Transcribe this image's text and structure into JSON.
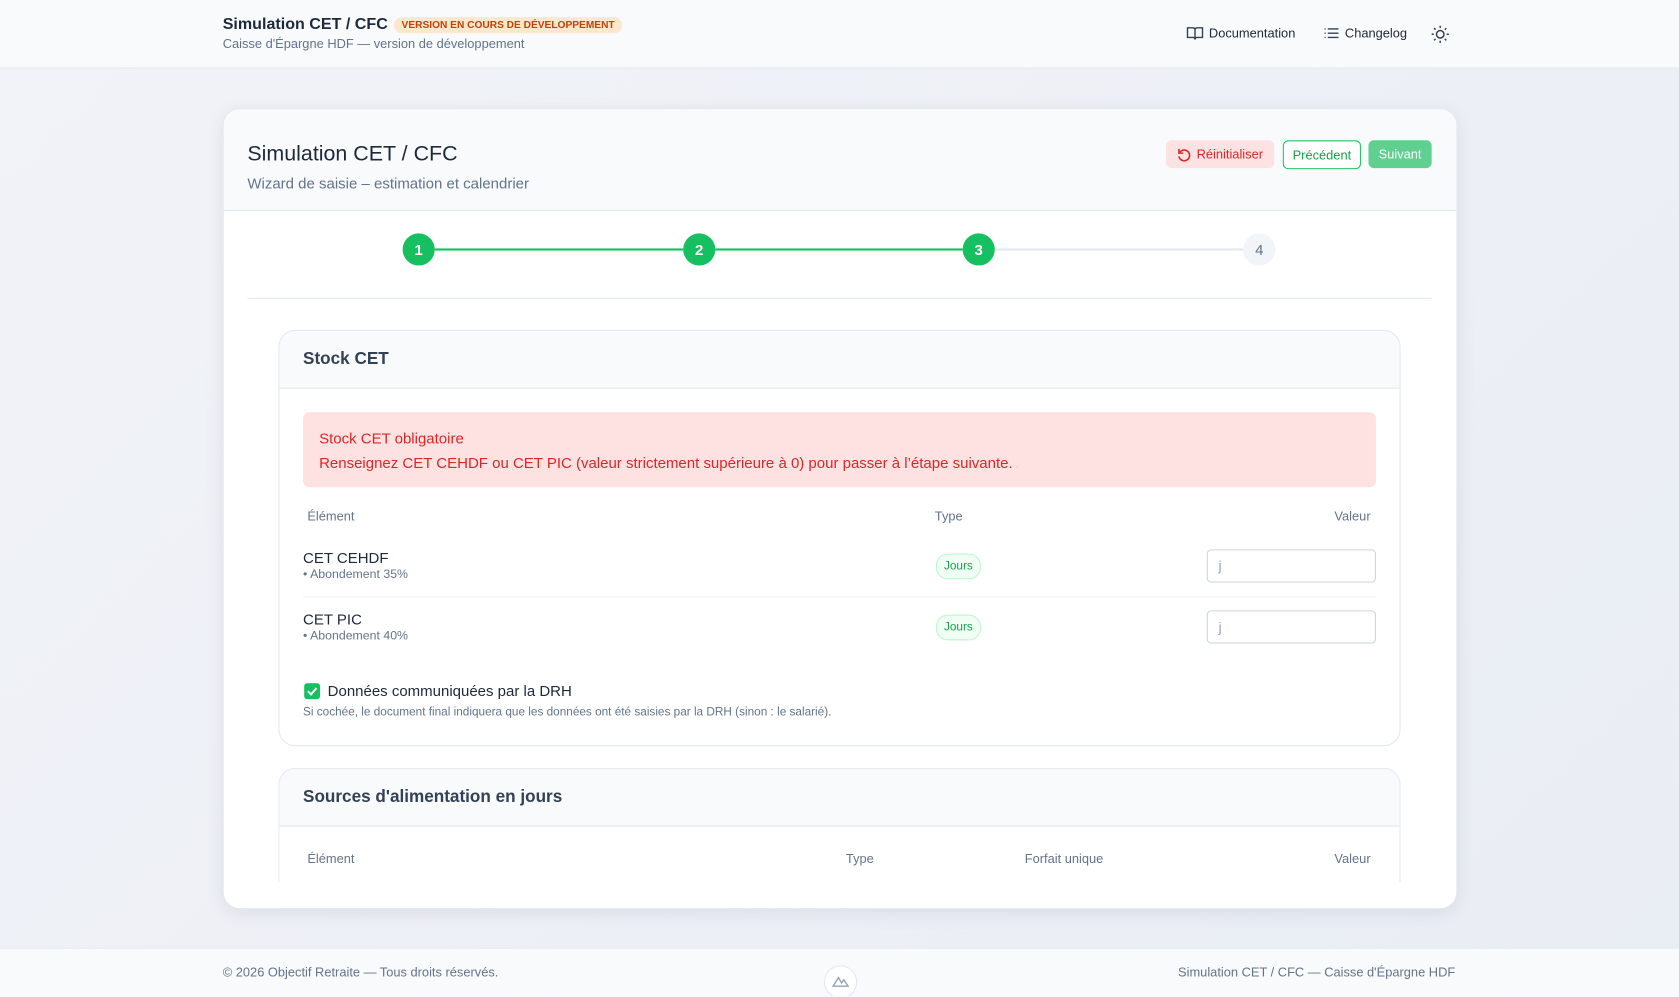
{
  "header": {
    "title": "Simulation CET / CFC",
    "badge": "VERSION EN COURS DE DÉVELOPPEMENT",
    "subtitle": "Caisse d'Épargne HDF — version de développement",
    "nav": [
      "Documentation",
      "Changelog"
    ]
  },
  "card": {
    "title": "Simulation CET / CFC",
    "subtitle": "Wizard de saisie – estimation et calendrier",
    "buttons": [
      "Réinitialiser",
      "Précédent",
      "Suivant"
    ],
    "steps": [
      "1",
      "2",
      "3",
      "4"
    ]
  },
  "stock": {
    "title": "Stock CET",
    "alert_title": "Stock CET obligatoire",
    "alert_text": "Renseignez CET CEHDF ou CET PIC (valeur strictement supérieure à 0) pour passer à l’étape suivante.",
    "columns": [
      "Élément",
      "Type",
      "Valeur"
    ],
    "rows": [
      {
        "label": "CET CEHDF",
        "note": "• Abondement 35%",
        "type": "Jours",
        "placeholder": "j"
      },
      {
        "label": "CET PIC",
        "note": "• Abondement 40%",
        "type": "Jours",
        "placeholder": "j"
      }
    ],
    "checkbox_label": "Données communiquées par la DRH",
    "checkbox_hint": "Si cochée, le document final indiquera que les données ont été saisies par la DRH (sinon : le salarié)."
  },
  "sources": {
    "title": "Sources d'alimentation en jours",
    "columns": [
      "Élément",
      "Type",
      "Forfait unique",
      "Valeur"
    ]
  },
  "footer": {
    "left": "© 2026 Objectif Retraite — Tous droits réservés.",
    "right": "Simulation CET / CFC — Caisse d'Épargne HDF"
  }
}
